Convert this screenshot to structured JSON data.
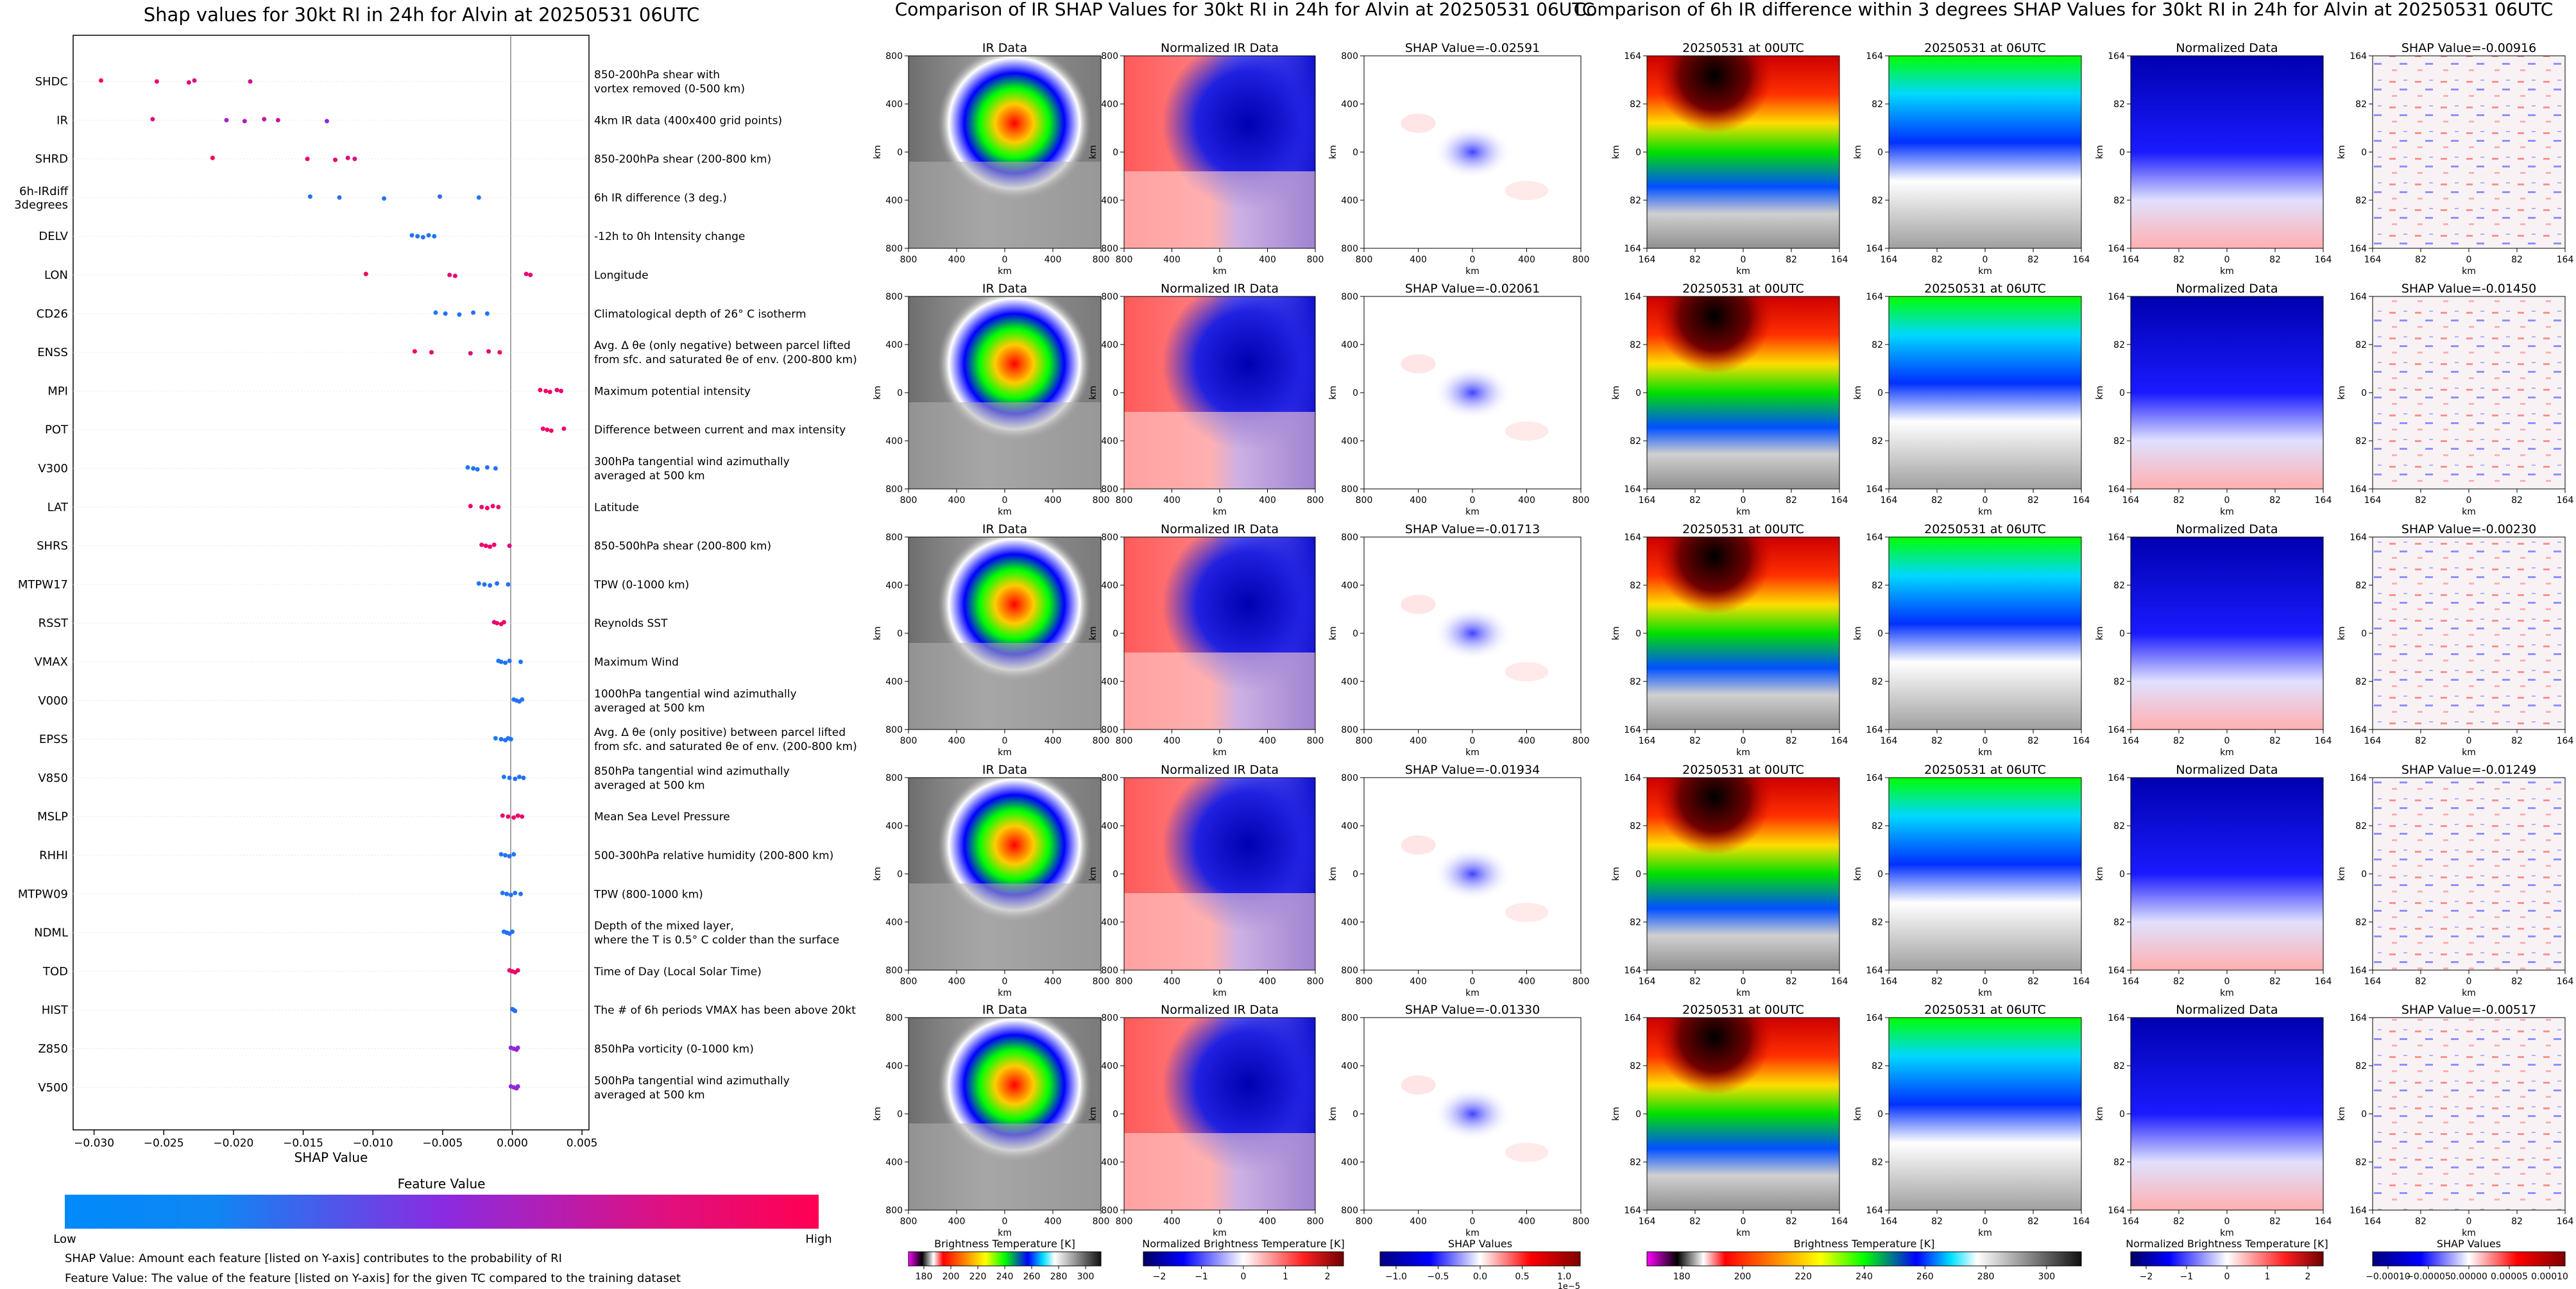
{
  "shap_panel": {
    "title": "Shap values for 30kt RI in 24h for Alvin at 20250531 06UTC",
    "xlabel": "SHAP Value",
    "xticks": [
      "−0.030",
      "−0.025",
      "−0.020",
      "−0.015",
      "−0.010",
      "−0.005",
      "0.000",
      "0.005"
    ],
    "colorbar_title": "Feature Value",
    "colorbar_low": "Low",
    "colorbar_high": "High",
    "note1": "SHAP Value: Amount each feature [listed on Y-axis] contributes to the probability of RI",
    "note2": "Feature Value: The value of the feature [listed on Y-axis] for the given TC compared to the training dataset",
    "features": [
      {
        "name": "SHDC",
        "desc": [
          "850-200hPa shear with",
          "vortex removed (0-500 km)"
        ]
      },
      {
        "name": "IR",
        "desc": [
          "4km IR data (400x400 grid points)"
        ]
      },
      {
        "name": "SHRD",
        "desc": [
          "850-200hPa shear (200-800 km)"
        ]
      },
      {
        "name": "6h-IRdiff 3degrees",
        "desc": [
          "6h IR difference (3 deg.)"
        ]
      },
      {
        "name": "DELV",
        "desc": [
          "-12h to 0h Intensity change"
        ]
      },
      {
        "name": "LON",
        "desc": [
          "Longitude"
        ]
      },
      {
        "name": "CD26",
        "desc": [
          "Climatological depth of 26° C isotherm"
        ]
      },
      {
        "name": "ENSS",
        "desc": [
          "Avg. Δ θe (only negative) between parcel lifted",
          "from sfc. and saturated θe of env. (200-800 km)"
        ]
      },
      {
        "name": "MPI",
        "desc": [
          "Maximum potential intensity"
        ]
      },
      {
        "name": "POT",
        "desc": [
          "Difference between current and max intensity"
        ]
      },
      {
        "name": "V300",
        "desc": [
          "300hPa tangential wind azimuthally",
          "averaged at 500 km"
        ]
      },
      {
        "name": "LAT",
        "desc": [
          "Latitude"
        ]
      },
      {
        "name": "SHRS",
        "desc": [
          "850-500hPa shear (200-800 km)"
        ]
      },
      {
        "name": "MTPW17",
        "desc": [
          "TPW (0-1000 km)"
        ]
      },
      {
        "name": "RSST",
        "desc": [
          "Reynolds SST"
        ]
      },
      {
        "name": "VMAX",
        "desc": [
          "Maximum Wind"
        ]
      },
      {
        "name": "V000",
        "desc": [
          "1000hPa tangential wind azimuthally",
          "averaged at 500 km"
        ]
      },
      {
        "name": "EPSS",
        "desc": [
          "Avg. Δ θe (only positive) between parcel lifted",
          "from sfc. and saturated θe of env. (200-800 km)"
        ]
      },
      {
        "name": "V850",
        "desc": [
          "850hPa tangential wind azimuthally",
          "averaged at 500 km"
        ]
      },
      {
        "name": "MSLP",
        "desc": [
          "Mean Sea Level Pressure"
        ]
      },
      {
        "name": "RHHI",
        "desc": [
          "500-300hPa relative humidity (200-800 km)"
        ]
      },
      {
        "name": "MTPW09",
        "desc": [
          "TPW (800-1000 km)"
        ]
      },
      {
        "name": "NDML",
        "desc": [
          "Depth of the mixed layer,",
          "where the T is 0.5° C colder than the surface"
        ]
      },
      {
        "name": "TOD",
        "desc": [
          "Time of Day (Local Solar Time)"
        ]
      },
      {
        "name": "HIST",
        "desc": [
          "The # of 6h periods VMAX has been above 20kt"
        ]
      },
      {
        "name": "Z850",
        "desc": [
          "850hPa vorticity (0-1000 km)"
        ]
      },
      {
        "name": "V500",
        "desc": [
          "500hPa tangential wind azimuthally",
          "averaged at 500 km"
        ]
      }
    ]
  },
  "ir_section": {
    "title": "Comparison of IR SHAP Values for 30kt RI in 24h for Alvin at 20250531 06UTC",
    "col_titles": [
      "IR Data",
      "Normalized IR Data"
    ],
    "shap_titles": [
      "SHAP Value=-0.02591",
      "SHAP Value=-0.02061",
      "SHAP Value=-0.01713",
      "SHAP Value=-0.01934",
      "SHAP Value=-0.01330"
    ],
    "axis_label": "km",
    "ticks": [
      "800",
      "400",
      "0",
      "400",
      "800"
    ],
    "colorbars": [
      {
        "label": "Brightness Temperature [K]",
        "ticks": [
          "180",
          "200",
          "220",
          "240",
          "260",
          "280",
          "300"
        ]
      },
      {
        "label": "Normalized Brightness Temperature [K]",
        "ticks": [
          "−2",
          "−1",
          "0",
          "1",
          "2"
        ]
      },
      {
        "label": "SHAP Values",
        "ticks": [
          "−1.0",
          "−0.5",
          "0.0",
          "0.5",
          "1.0"
        ],
        "offset": "1e−5"
      }
    ]
  },
  "diff_section": {
    "title": "Comparison of 6h IR difference within 3 degrees SHAP Values for 30kt RI in 24h for Alvin at 20250531 06UTC",
    "col_titles": [
      "20250531 at 00UTC",
      "20250531 at 06UTC",
      "Normalized Data"
    ],
    "shap_titles": [
      "SHAP Value=-0.00916",
      "SHAP Value=-0.01450",
      "SHAP Value=-0.00230",
      "SHAP Value=-0.01249",
      "SHAP Value=-0.00517"
    ],
    "axis_label": "km",
    "ticks": [
      "164",
      "82",
      "0",
      "82",
      "164"
    ],
    "colorbars": [
      {
        "label": "Brightness Temperature [K]",
        "ticks": [
          "180",
          "200",
          "220",
          "240",
          "260",
          "280",
          "300"
        ]
      },
      {
        "label": "Normalized Brightness Temperature [K]",
        "ticks": [
          "−2",
          "−1",
          "0",
          "1",
          "2"
        ]
      },
      {
        "label": "SHAP Values",
        "ticks": [
          "−0.00010",
          "−0.00005",
          "0.00000",
          "0.00005",
          "0.00010"
        ]
      }
    ]
  },
  "colors": {
    "low": "#008afb",
    "high": "#ff0052",
    "mid": "#8a2be2"
  },
  "chart_data": [
    {
      "type": "scatter",
      "title": "Shap values for 30kt RI in 24h for Alvin at 20250531 06UTC",
      "xlabel": "SHAP Value",
      "ylabel": "",
      "xlim": [
        -0.0315,
        0.0055
      ],
      "categories": [
        "SHDC",
        "IR",
        "SHRD",
        "6h-IRdiff 3degrees",
        "DELV",
        "LON",
        "CD26",
        "ENSS",
        "MPI",
        "POT",
        "V300",
        "LAT",
        "SHRS",
        "MTPW17",
        "RSST",
        "VMAX",
        "V000",
        "EPSS",
        "V850",
        "MSLP",
        "RHHI",
        "MTPW09",
        "NDML",
        "TOD",
        "HIST",
        "Z850",
        "V500"
      ],
      "series": [
        {
          "name": "SHDC",
          "values": [
            [
              -0.0295,
              0.95
            ],
            [
              -0.0255,
              0.9
            ],
            [
              -0.0232,
              0.88
            ],
            [
              -0.0228,
              0.85
            ],
            [
              -0.0188,
              0.8
            ]
          ]
        },
        {
          "name": "IR",
          "values": [
            [
              -0.0258,
              0.85
            ],
            [
              -0.0205,
              0.6
            ],
            [
              -0.0192,
              0.65
            ],
            [
              -0.0178,
              0.7
            ],
            [
              -0.0168,
              0.75
            ],
            [
              -0.0133,
              0.5
            ]
          ]
        },
        {
          "name": "SHRD",
          "values": [
            [
              -0.0215,
              0.95
            ],
            [
              -0.0147,
              0.9
            ],
            [
              -0.0127,
              0.88
            ],
            [
              -0.0118,
              0.85
            ],
            [
              -0.0113,
              0.82
            ]
          ]
        },
        {
          "name": "6h-IRdiff 3degrees",
          "values": [
            [
              -0.0145,
              0.1
            ],
            [
              -0.0124,
              0.15
            ],
            [
              -0.0092,
              0.1
            ],
            [
              -0.0052,
              0.2
            ],
            [
              -0.0024,
              0.1
            ]
          ]
        },
        {
          "name": "DELV",
          "values": [
            [
              -0.0072,
              0.1
            ],
            [
              -0.0068,
              0.12
            ],
            [
              -0.0064,
              0.15
            ],
            [
              -0.006,
              0.12
            ],
            [
              -0.0056,
              0.1
            ]
          ]
        },
        {
          "name": "LON",
          "values": [
            [
              -0.0105,
              0.95
            ],
            [
              -0.0045,
              0.9
            ],
            [
              -0.0041,
              0.88
            ],
            [
              0.001,
              0.9
            ],
            [
              0.0013,
              0.92
            ]
          ]
        },
        {
          "name": "CD26",
          "values": [
            [
              -0.0055,
              0.1
            ],
            [
              -0.0048,
              0.12
            ],
            [
              -0.0038,
              0.1
            ],
            [
              -0.0028,
              0.15
            ],
            [
              -0.0018,
              0.1
            ]
          ]
        },
        {
          "name": "ENSS",
          "values": [
            [
              -0.007,
              0.95
            ],
            [
              -0.0058,
              0.9
            ],
            [
              -0.003,
              0.85
            ],
            [
              -0.0017,
              0.9
            ],
            [
              -0.0009,
              0.95
            ]
          ]
        },
        {
          "name": "MPI",
          "values": [
            [
              0.002,
              0.9
            ],
            [
              0.0024,
              0.92
            ],
            [
              0.0027,
              0.95
            ],
            [
              0.0032,
              0.9
            ],
            [
              0.0035,
              0.92
            ]
          ]
        },
        {
          "name": "POT",
          "values": [
            [
              0.0022,
              0.9
            ],
            [
              0.0025,
              0.92
            ],
            [
              0.0028,
              0.95
            ],
            [
              0.0037,
              0.9
            ]
          ]
        },
        {
          "name": "V300",
          "values": [
            [
              -0.0032,
              0.1
            ],
            [
              -0.0028,
              0.12
            ],
            [
              -0.0025,
              0.1
            ],
            [
              -0.0018,
              0.15
            ],
            [
              -0.0012,
              0.1
            ]
          ]
        },
        {
          "name": "LAT",
          "values": [
            [
              -0.003,
              0.9
            ],
            [
              -0.0022,
              0.92
            ],
            [
              -0.0018,
              0.95
            ],
            [
              -0.0014,
              0.9
            ],
            [
              -0.001,
              0.92
            ]
          ]
        },
        {
          "name": "SHRS",
          "values": [
            [
              -0.0022,
              0.9
            ],
            [
              -0.0019,
              0.92
            ],
            [
              -0.0016,
              0.95
            ],
            [
              -0.0013,
              0.9
            ],
            [
              -0.0002,
              0.85
            ]
          ]
        },
        {
          "name": "MTPW17",
          "values": [
            [
              -0.0024,
              0.1
            ],
            [
              -0.002,
              0.12
            ],
            [
              -0.0016,
              0.1
            ],
            [
              -0.0011,
              0.15
            ],
            [
              -0.0003,
              0.1
            ]
          ]
        },
        {
          "name": "RSST",
          "values": [
            [
              -0.0013,
              0.9
            ],
            [
              -0.0011,
              0.92
            ],
            [
              -0.0008,
              0.95
            ],
            [
              -0.0006,
              0.9
            ]
          ]
        },
        {
          "name": "VMAX",
          "values": [
            [
              -0.001,
              0.1
            ],
            [
              -0.0008,
              0.12
            ],
            [
              -0.0005,
              0.15
            ],
            [
              -0.0002,
              0.1
            ],
            [
              0.0006,
              0.1
            ]
          ]
        },
        {
          "name": "V000",
          "values": [
            [
              0.0001,
              0.1
            ],
            [
              0.0003,
              0.12
            ],
            [
              0.0005,
              0.15
            ],
            [
              0.0007,
              0.1
            ]
          ]
        },
        {
          "name": "EPSS",
          "values": [
            [
              -0.0012,
              0.1
            ],
            [
              -0.0008,
              0.12
            ],
            [
              -0.0005,
              0.15
            ],
            [
              -0.0003,
              0.1
            ],
            [
              -0.0001,
              0.12
            ]
          ]
        },
        {
          "name": "V850",
          "values": [
            [
              -0.0006,
              0.1
            ],
            [
              -0.0002,
              0.12
            ],
            [
              0.0002,
              0.15
            ],
            [
              0.0005,
              0.1
            ],
            [
              0.0008,
              0.12
            ]
          ]
        },
        {
          "name": "MSLP",
          "values": [
            [
              -0.0007,
              0.9
            ],
            [
              -0.0003,
              0.92
            ],
            [
              0.0001,
              0.95
            ],
            [
              0.0004,
              0.9
            ],
            [
              0.0007,
              0.92
            ]
          ]
        },
        {
          "name": "RHHI",
          "values": [
            [
              -0.0008,
              0.1
            ],
            [
              -0.0005,
              0.12
            ],
            [
              -0.0002,
              0.15
            ],
            [
              0.0001,
              0.1
            ]
          ]
        },
        {
          "name": "MTPW09",
          "values": [
            [
              -0.0007,
              0.1
            ],
            [
              -0.0004,
              0.12
            ],
            [
              -0.0001,
              0.15
            ],
            [
              0.0002,
              0.1
            ],
            [
              0.0006,
              0.12
            ]
          ]
        },
        {
          "name": "NDML",
          "values": [
            [
              -0.0006,
              0.1
            ],
            [
              -0.0004,
              0.12
            ],
            [
              -0.0002,
              0.15
            ],
            [
              0.0,
              0.1
            ]
          ]
        },
        {
          "name": "TOD",
          "values": [
            [
              -0.0002,
              0.9
            ],
            [
              0.0,
              0.92
            ],
            [
              0.0002,
              0.95
            ],
            [
              0.0004,
              0.9
            ]
          ]
        },
        {
          "name": "HIST",
          "values": [
            [
              0.0,
              0.1
            ],
            [
              0.0001,
              0.12
            ],
            [
              0.0002,
              0.15
            ]
          ]
        },
        {
          "name": "Z850",
          "values": [
            [
              -0.0001,
              0.5
            ],
            [
              0.0001,
              0.55
            ],
            [
              0.0003,
              0.6
            ],
            [
              0.0004,
              0.5
            ]
          ]
        },
        {
          "name": "V500",
          "values": [
            [
              -0.0001,
              0.5
            ],
            [
              0.0001,
              0.55
            ],
            [
              0.0003,
              0.6
            ],
            [
              0.0004,
              0.5
            ]
          ]
        }
      ]
    }
  ]
}
